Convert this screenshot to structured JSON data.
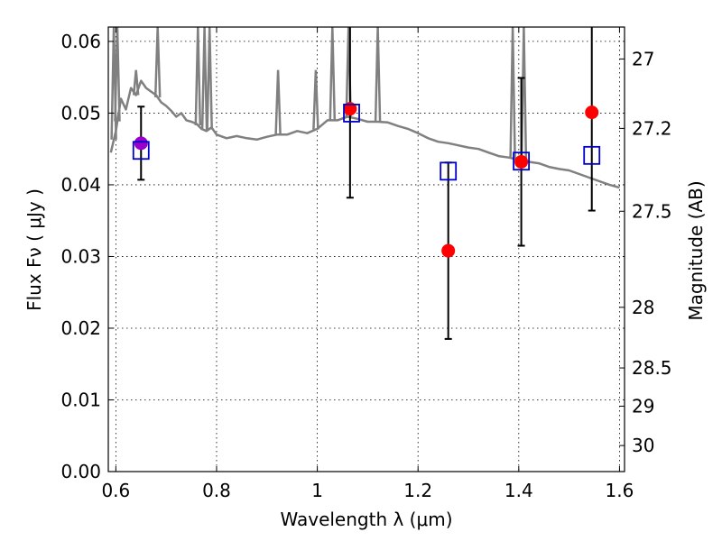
{
  "chart_data": {
    "type": "scatter",
    "title": "",
    "xlabel": "Wavelength  λ (μm)",
    "ylabel": "Flux  Fν  ( μJy )",
    "ylabel2": "Magnitude (AB)",
    "xlim": [
      0.585,
      1.61
    ],
    "ylim": [
      0.0,
      0.062
    ],
    "x_ticks": [
      0.6,
      0.8,
      1.0,
      1.2,
      1.4,
      1.6
    ],
    "x_tick_labels": [
      "0.6",
      "0.8",
      "1",
      "1.2",
      "1.4",
      "1.6"
    ],
    "y_ticks": [
      0.0,
      0.01,
      0.02,
      0.03,
      0.04,
      0.05,
      0.06
    ],
    "y_tick_labels": [
      "0.00",
      "0.01",
      "0.02",
      "0.03",
      "0.04",
      "0.05",
      "0.06"
    ],
    "mag_ticks": [
      27,
      27.2,
      27.5,
      28,
      28.5,
      29,
      30
    ],
    "mag_tick_labels": [
      "27",
      "27.2",
      "27.5",
      "28",
      "28.5",
      "29",
      "30"
    ],
    "grid": true,
    "colors": {
      "model": "#808080",
      "observed": "#ff0000",
      "model_photometry": "#0000cc",
      "overlap": "#9900cc",
      "errorbar": "#000000"
    },
    "series": [
      {
        "name": "model spectrum",
        "kind": "line",
        "x": [
          0.59,
          0.6,
          0.61,
          0.62,
          0.63,
          0.64,
          0.65,
          0.66,
          0.67,
          0.68,
          0.69,
          0.7,
          0.71,
          0.72,
          0.73,
          0.74,
          0.75,
          0.76,
          0.77,
          0.78,
          0.79,
          0.8,
          0.82,
          0.84,
          0.86,
          0.88,
          0.9,
          0.92,
          0.94,
          0.96,
          0.98,
          1.0,
          1.02,
          1.04,
          1.06,
          1.08,
          1.1,
          1.12,
          1.14,
          1.16,
          1.18,
          1.2,
          1.22,
          1.24,
          1.26,
          1.28,
          1.3,
          1.32,
          1.34,
          1.36,
          1.38,
          1.4,
          1.42,
          1.44,
          1.46,
          1.48,
          1.5,
          1.52,
          1.54,
          1.56,
          1.58,
          1.6
        ],
        "y": [
          0.0445,
          0.0475,
          0.052,
          0.0505,
          0.0535,
          0.0525,
          0.0545,
          0.0535,
          0.053,
          0.0525,
          0.0515,
          0.051,
          0.0503,
          0.0495,
          0.05,
          0.049,
          0.0488,
          0.0485,
          0.0478,
          0.0475,
          0.048,
          0.047,
          0.0465,
          0.0468,
          0.0465,
          0.0463,
          0.0467,
          0.047,
          0.047,
          0.0475,
          0.0472,
          0.0478,
          0.049,
          0.049,
          0.0495,
          0.0492,
          0.0488,
          0.0488,
          0.0487,
          0.0482,
          0.0478,
          0.0472,
          0.0465,
          0.046,
          0.0458,
          0.0455,
          0.0452,
          0.045,
          0.0445,
          0.044,
          0.0438,
          0.0435,
          0.0432,
          0.043,
          0.0425,
          0.0422,
          0.042,
          0.0415,
          0.041,
          0.0405,
          0.04,
          0.0396
        ]
      },
      {
        "name": "observed",
        "kind": "points_with_errors",
        "x": [
          0.65,
          1.065,
          1.26,
          1.405,
          1.545
        ],
        "y": [
          0.0458,
          0.0506,
          0.0308,
          0.0432,
          0.0501
        ],
        "yerr_low": [
          0.0051,
          0.0124,
          0.0123,
          0.0117,
          0.0137
        ],
        "yerr_high": [
          0.0051,
          0.0124,
          0.0123,
          0.0117,
          0.0137
        ]
      },
      {
        "name": "model photometry",
        "kind": "open_squares",
        "x": [
          0.65,
          1.068,
          1.26,
          1.405,
          1.545
        ],
        "y": [
          0.0448,
          0.05,
          0.0419,
          0.0433,
          0.0441
        ]
      }
    ],
    "spectral_lines": [
      {
        "x": 0.596,
        "top": 0.062
      },
      {
        "x": 0.603,
        "top": 0.062
      },
      {
        "x": 0.64,
        "top": 0.056
      },
      {
        "x": 0.683,
        "top": 0.062
      },
      {
        "x": 0.763,
        "top": 0.062
      },
      {
        "x": 0.776,
        "top": 0.062
      },
      {
        "x": 0.786,
        "top": 0.062
      },
      {
        "x": 0.922,
        "top": 0.056
      },
      {
        "x": 0.997,
        "top": 0.056
      },
      {
        "x": 1.03,
        "top": 0.062
      },
      {
        "x": 1.062,
        "top": 0.062
      },
      {
        "x": 1.12,
        "top": 0.062
      },
      {
        "x": 1.388,
        "top": 0.062
      },
      {
        "x": 1.41,
        "top": 0.062
      }
    ]
  }
}
